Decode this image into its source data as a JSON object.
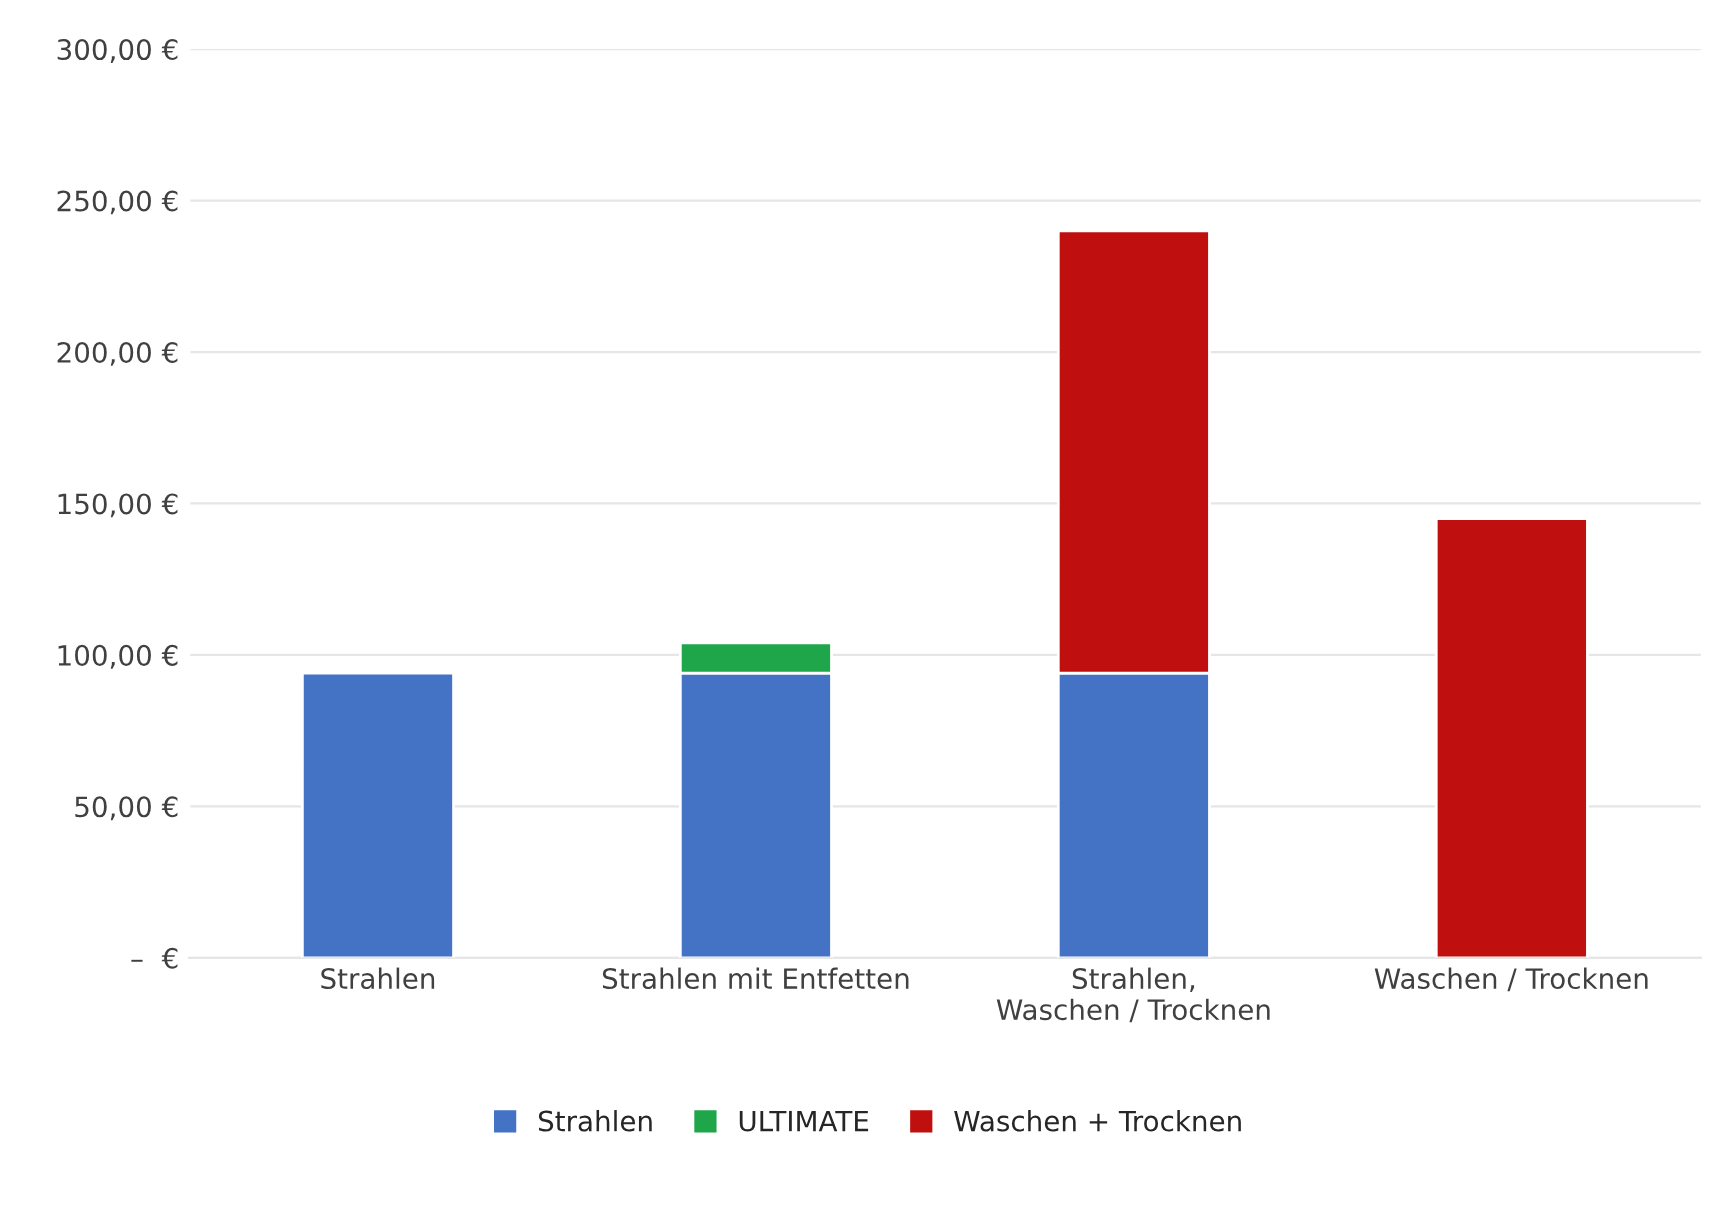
{
  "chart_data": {
    "type": "bar",
    "stacked": true,
    "categories": [
      "Strahlen",
      "Strahlen mit Entfetten",
      "Strahlen,\nWaschen / Trocknen",
      "Waschen / Trocknen"
    ],
    "series": [
      {
        "name": "Strahlen",
        "color": "#4472c4",
        "values": [
          94,
          94,
          94,
          null
        ]
      },
      {
        "name": "ULTIMATE",
        "color": "#1fa64a",
        "values": [
          null,
          10,
          null,
          null
        ]
      },
      {
        "name": "Waschen + Trocknen",
        "color": "#c00f0f",
        "values": [
          null,
          null,
          146,
          145
        ]
      }
    ],
    "ylim": [
      0,
      300
    ],
    "yticks": [
      {
        "value": 0,
        "label": "–  €"
      },
      {
        "value": 50,
        "label": "50,00 €"
      },
      {
        "value": 100,
        "label": "100,00 €"
      },
      {
        "value": 150,
        "label": "150,00 €"
      },
      {
        "value": 200,
        "label": "200,00 €"
      },
      {
        "value": 250,
        "label": "250,00 €"
      },
      {
        "value": 300,
        "label": "300,00 €"
      }
    ],
    "grid": "y",
    "legend": "bottom"
  }
}
